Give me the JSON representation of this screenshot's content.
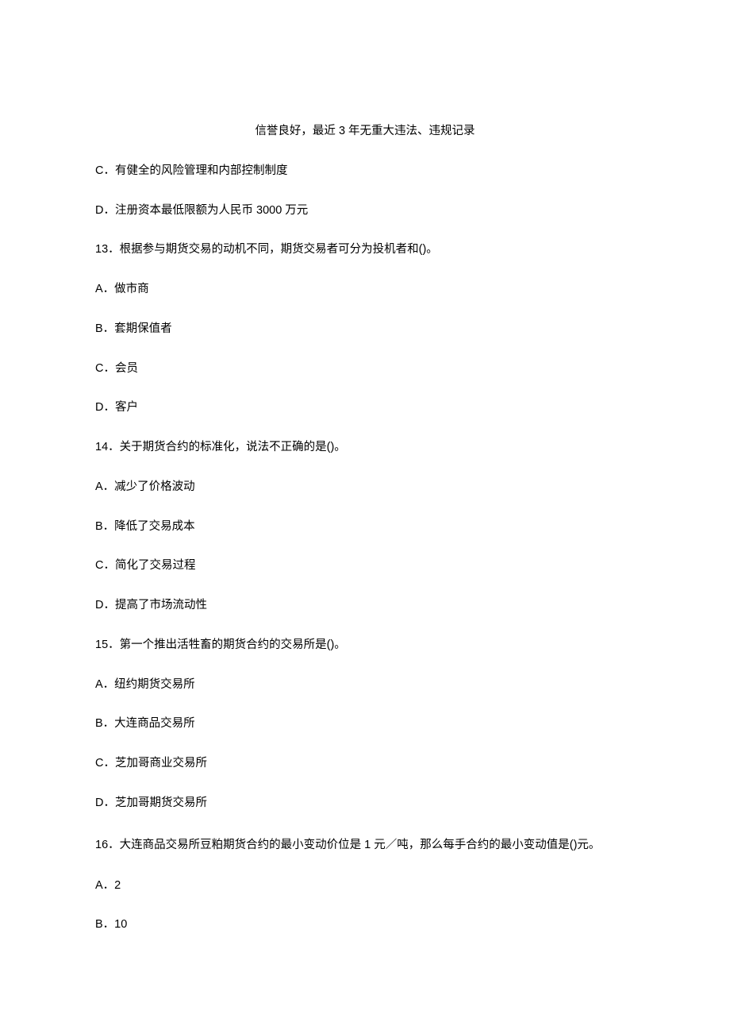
{
  "topLine": "信誉良好，最近 3 年无重大违法、违规记录",
  "q12": {
    "optC": "C．有健全的风险管理和内部控制制度",
    "optD": "D．注册资本最低限额为人民币 3000 万元"
  },
  "q13": {
    "text": "13．根据参与期货交易的动机不同，期货交易者可分为投机者和()。",
    "optA": "A．做市商",
    "optB": "B．套期保值者",
    "optC": "C．会员",
    "optD": "D．客户"
  },
  "q14": {
    "text": "14．关于期货合约的标准化，说法不正确的是()。",
    "optA": "A．减少了价格波动",
    "optB": "B．降低了交易成本",
    "optC": "C．简化了交易过程",
    "optD": "D．提高了市场流动性"
  },
  "q15": {
    "text": "15．第一个推出活牲畜的期货合约的交易所是()。",
    "optA": "A．纽约期货交易所",
    "optB": "B．大连商品交易所",
    "optC": "C．芝加哥商业交易所",
    "optD": "D．芝加哥期货交易所"
  },
  "q16": {
    "text": "16．大连商品交易所豆粕期货合约的最小变动价位是 1 元／吨，那么每手合约的最小变动值是()元。",
    "optA": "A．2",
    "optB": "B．10"
  }
}
